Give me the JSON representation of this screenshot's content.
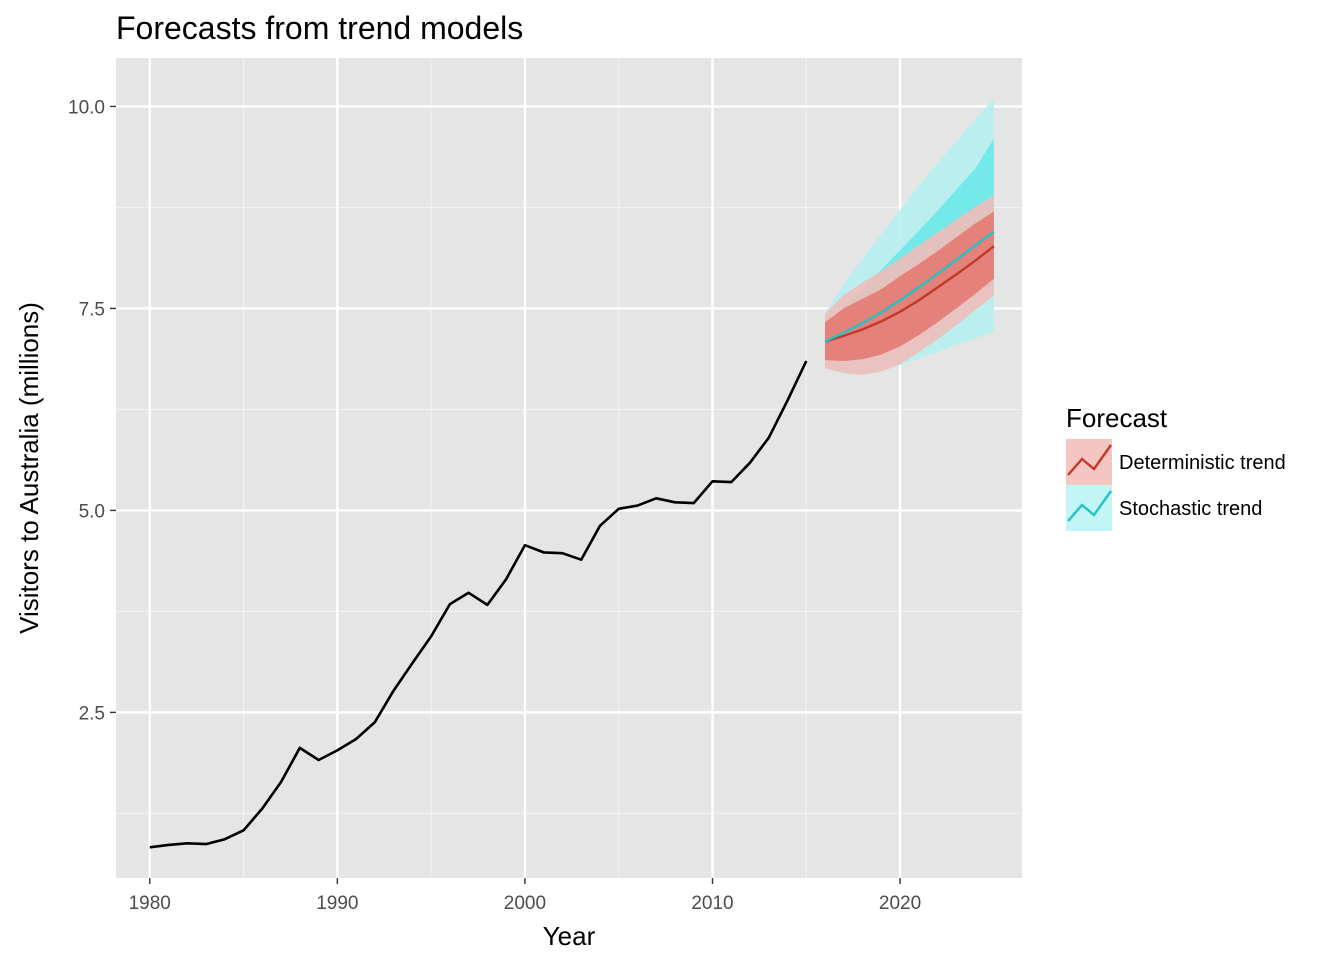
{
  "chart_data": {
    "type": "line",
    "title": "Forecasts from trend models",
    "xlabel": "Year",
    "ylabel": "Visitors to Australia (millions)",
    "xlim": [
      1978.2,
      2026.5
    ],
    "ylim": [
      0.45,
      10.6
    ],
    "x_ticks": [
      1980,
      1990,
      2000,
      2010,
      2020
    ],
    "x_tick_labels": [
      "1980",
      "1990",
      "2000",
      "2010",
      "2020"
    ],
    "y_ticks": [
      2.5,
      5.0,
      7.5,
      10.0
    ],
    "y_tick_labels": [
      "2.5",
      "5.0",
      "7.5",
      "10.0"
    ],
    "grid": true,
    "panel_background": "#e5e5e5",
    "legend": {
      "title": "Forecast",
      "position": "right",
      "entries": [
        {
          "label": "Deterministic trend",
          "color": "#c0392b",
          "fill": "#f4c5c1"
        },
        {
          "label": "Stochastic trend",
          "color": "#26c1c1",
          "fill": "#c2f5f5"
        }
      ]
    },
    "observed": {
      "color": "#000000",
      "x": [
        1980,
        1981,
        1982,
        1983,
        1984,
        1985,
        1986,
        1987,
        1988,
        1989,
        1990,
        1991,
        1992,
        1993,
        1994,
        1995,
        1996,
        1997,
        1998,
        1999,
        2000,
        2001,
        2002,
        2003,
        2004,
        2005,
        2006,
        2007,
        2008,
        2009,
        2010,
        2011,
        2012,
        2013,
        2014,
        2015
      ],
      "y": [
        0.83,
        0.86,
        0.88,
        0.87,
        0.93,
        1.04,
        1.31,
        1.64,
        2.06,
        1.91,
        2.03,
        2.17,
        2.38,
        2.77,
        3.11,
        3.44,
        3.84,
        3.98,
        3.83,
        4.15,
        4.57,
        4.48,
        4.47,
        4.39,
        4.81,
        5.02,
        5.06,
        5.15,
        5.1,
        5.09,
        5.36,
        5.35,
        5.59,
        5.9,
        6.36,
        6.85
      ]
    },
    "forecasts": [
      {
        "name": "Stochastic trend",
        "color": "#26c1c1",
        "fill80": "#6de8e8",
        "fill95": "#b6f0f0",
        "x": [
          2016,
          2017,
          2018,
          2019,
          2020,
          2021,
          2022,
          2023,
          2024,
          2025
        ],
        "mean": [
          7.09,
          7.2,
          7.32,
          7.45,
          7.6,
          7.76,
          7.93,
          8.1,
          8.28,
          8.45
        ],
        "lo80": [
          6.86,
          6.86,
          6.88,
          6.93,
          7.05,
          7.2,
          7.35,
          7.5,
          7.66,
          7.82
        ],
        "hi80": [
          7.32,
          7.52,
          7.74,
          7.98,
          8.22,
          8.46,
          8.71,
          8.97,
          9.23,
          9.6
        ],
        "lo95": [
          6.76,
          6.69,
          6.68,
          6.72,
          6.8,
          6.88,
          6.96,
          7.05,
          7.13,
          7.21
        ],
        "hi95": [
          7.45,
          7.8,
          8.12,
          8.42,
          8.72,
          9.02,
          9.3,
          9.57,
          9.84,
          10.1
        ]
      },
      {
        "name": "Deterministic trend",
        "color": "#c0392b",
        "fill80": "#e47a73",
        "fill95": "#f0bcb9",
        "x": [
          2016,
          2017,
          2018,
          2019,
          2020,
          2021,
          2022,
          2023,
          2024,
          2025
        ],
        "mean": [
          7.09,
          7.16,
          7.24,
          7.34,
          7.46,
          7.6,
          7.76,
          7.92,
          8.09,
          8.27
        ],
        "lo80": [
          6.86,
          6.85,
          6.87,
          6.93,
          7.03,
          7.17,
          7.33,
          7.5,
          7.68,
          7.87
        ],
        "hi80": [
          7.33,
          7.5,
          7.62,
          7.74,
          7.9,
          8.05,
          8.21,
          8.38,
          8.55,
          8.7
        ],
        "lo95": [
          6.76,
          6.7,
          6.68,
          6.72,
          6.81,
          6.96,
          7.12,
          7.29,
          7.48,
          7.66
        ],
        "hi95": [
          7.43,
          7.67,
          7.82,
          7.96,
          8.12,
          8.28,
          8.44,
          8.6,
          8.76,
          8.9
        ]
      }
    ]
  }
}
